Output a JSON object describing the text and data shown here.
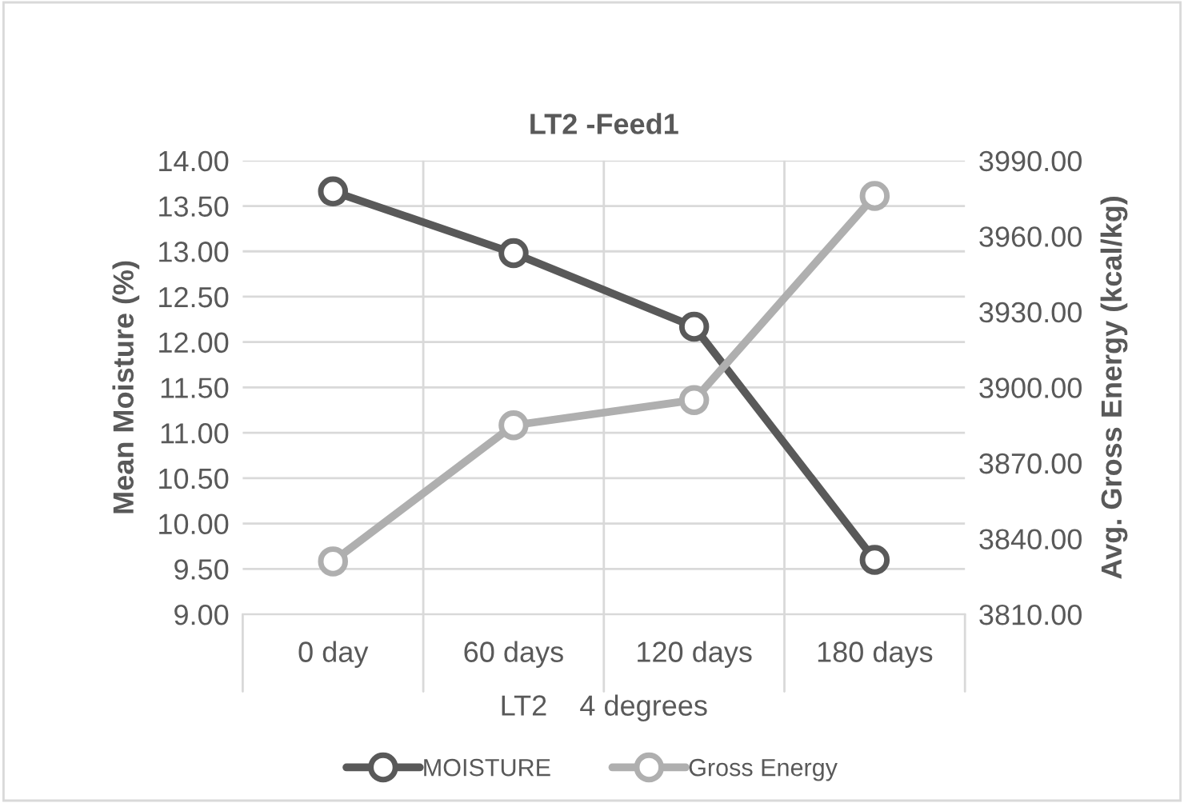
{
  "chart_data": {
    "type": "line",
    "title": "LT2 -Feed1",
    "xlabel": "LT2    4 degrees",
    "ylabel": "Mean Moisture (%)",
    "y2label": "Avg. Gross Energy (kcal/kg)",
    "categories": [
      "0 day",
      "60 days",
      "120 days",
      "180 days"
    ],
    "series": [
      {
        "name": "MOISTURE",
        "color": "#595959",
        "values": [
          13.66,
          12.98,
          12.17,
          9.6
        ]
      },
      {
        "name": "Gross Energy",
        "color": "#afafaf",
        "axis": "y2",
        "values": [
          3831,
          3885,
          3895,
          3976
        ]
      }
    ],
    "ylim": [
      9,
      14
    ],
    "yticks": [
      {
        "value": 9,
        "label": "9.00"
      },
      {
        "value": 9.5,
        "label": "9.50"
      },
      {
        "value": 10,
        "label": "10.00"
      },
      {
        "value": 10.5,
        "label": "10.50"
      },
      {
        "value": 11,
        "label": "11.00"
      },
      {
        "value": 11.5,
        "label": "11.50"
      },
      {
        "value": 12,
        "label": "12.00"
      },
      {
        "value": 12.5,
        "label": "12.50"
      },
      {
        "value": 13,
        "label": "13.00"
      },
      {
        "value": 13.5,
        "label": "13.50"
      },
      {
        "value": 14,
        "label": "14.00"
      }
    ],
    "y2lim": [
      3810,
      3990
    ],
    "y2ticks": [
      {
        "value": 3810,
        "label": "3810.00"
      },
      {
        "value": 3840,
        "label": "3840.00"
      },
      {
        "value": 3870,
        "label": "3870.00"
      },
      {
        "value": 3900,
        "label": "3900.00"
      },
      {
        "value": 3930,
        "label": "3930.00"
      },
      {
        "value": 3960,
        "label": "3960.00"
      },
      {
        "value": 3990,
        "label": "3990.00"
      }
    ],
    "grid": true,
    "legend": "bottom",
    "marker": "circle",
    "line_style": "solid"
  }
}
